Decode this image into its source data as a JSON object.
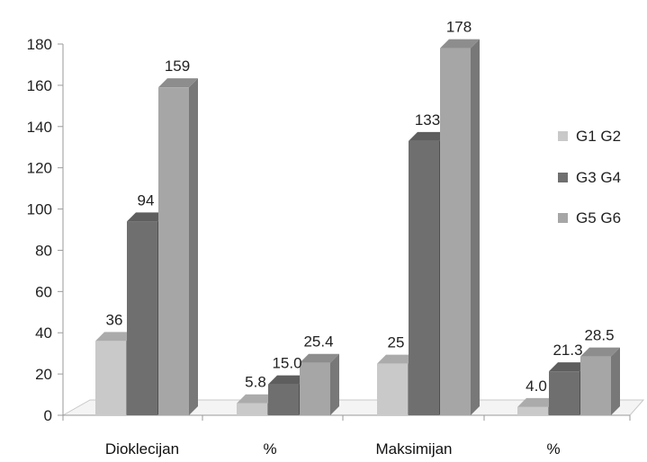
{
  "chart_data": {
    "type": "bar",
    "style": "3d-clustered-column",
    "categories": [
      "Dioklecijan",
      "%",
      "Maksimijan",
      "%"
    ],
    "series": [
      {
        "name": "G1 G2",
        "values": [
          36,
          5.8,
          25,
          4.0
        ],
        "labels": [
          "36",
          "5.8",
          "25",
          "4.0"
        ],
        "color": "#c9c9c9"
      },
      {
        "name": "G3 G4",
        "values": [
          94,
          15.0,
          133,
          21.3
        ],
        "labels": [
          "94",
          "15.0",
          "133",
          "21.3"
        ],
        "color": "#6f6f6f"
      },
      {
        "name": "G5 G6",
        "values": [
          159,
          25.4,
          178,
          28.5
        ],
        "labels": [
          "159",
          "25.4",
          "178",
          "28.5"
        ],
        "color": "#a6a6a6"
      }
    ],
    "ylim": [
      0,
      180
    ],
    "yticks": [
      "0",
      "20",
      "40",
      "60",
      "80",
      "100",
      "120",
      "140",
      "160",
      "180"
    ],
    "grid": false,
    "legend_position": "right"
  }
}
